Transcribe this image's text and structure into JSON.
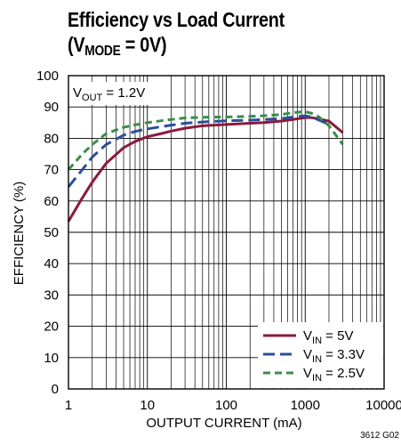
{
  "title": {
    "line1": "Efficiency vs Load Current",
    "line2_prefix": "(V",
    "line2_sub": "MODE",
    "line2_suffix": " = 0V)"
  },
  "annotation": {
    "prefix": "V",
    "sub": "OUT",
    "suffix": " = 1.2V"
  },
  "figure_id": "3612 G02",
  "chart_data": {
    "type": "line",
    "title": "Efficiency vs Load Current (VMODE = 0V)",
    "xlabel": "OUTPUT CURRENT (mA)",
    "ylabel": "EFFICIENCY (%)",
    "xscale": "log",
    "xlim": [
      1,
      10000
    ],
    "ylim": [
      0,
      100
    ],
    "x_ticks": [
      "1",
      "10",
      "100",
      "1000",
      "10000"
    ],
    "y_ticks": [
      "0",
      "10",
      "20",
      "30",
      "40",
      "50",
      "60",
      "70",
      "80",
      "90",
      "100"
    ],
    "grid": true,
    "legend_position": "bottom-right",
    "series": [
      {
        "name": "VIN = 5V",
        "legend": {
          "prefix": "V",
          "sub": "IN",
          "suffix": " = 5V"
        },
        "color": "#8b1a3c",
        "style": "solid",
        "x": [
          1,
          1.5,
          2,
          3,
          5,
          7,
          10,
          15,
          20,
          30,
          50,
          70,
          100,
          200,
          300,
          500,
          700,
          1000,
          1200,
          1500,
          2000,
          3000
        ],
        "y": [
          53.5,
          61,
          66,
          72,
          77,
          79,
          80.5,
          81.5,
          82.3,
          83.2,
          84,
          84.2,
          84.4,
          84.8,
          85,
          85.5,
          86,
          86.6,
          86.6,
          86.2,
          85.5,
          81.8
        ]
      },
      {
        "name": "VIN = 3.3V",
        "legend": {
          "prefix": "V",
          "sub": "IN",
          "suffix": " = 3.3V"
        },
        "color": "#2b4e9b",
        "style": "dashed",
        "x": [
          1,
          1.5,
          2,
          3,
          5,
          7,
          10,
          15,
          20,
          30,
          50,
          70,
          100,
          200,
          300,
          500,
          700,
          1000,
          1200,
          1500,
          2000
        ],
        "y": [
          64.5,
          70,
          74,
          78,
          81,
          82.2,
          83,
          83.7,
          84.2,
          84.8,
          85.2,
          85.4,
          85.6,
          85.8,
          86,
          86.3,
          86.8,
          87.2,
          86.8,
          85.8,
          84.5
        ]
      },
      {
        "name": "VIN = 2.5V",
        "legend": {
          "prefix": "V",
          "sub": "IN",
          "suffix": " = 2.5V"
        },
        "color": "#3c8c4a",
        "style": "dashed",
        "x": [
          1,
          1.5,
          2,
          3,
          5,
          7,
          10,
          15,
          20,
          30,
          50,
          70,
          100,
          200,
          300,
          500,
          700,
          1000,
          1200,
          1500,
          2000,
          3000
        ],
        "y": [
          70,
          75,
          78,
          81.5,
          83.5,
          84.3,
          85,
          85.6,
          86,
          86.5,
          86.7,
          86.8,
          86.8,
          87,
          87.2,
          87.6,
          88.2,
          88.5,
          88,
          86.8,
          84,
          78
        ]
      }
    ]
  }
}
